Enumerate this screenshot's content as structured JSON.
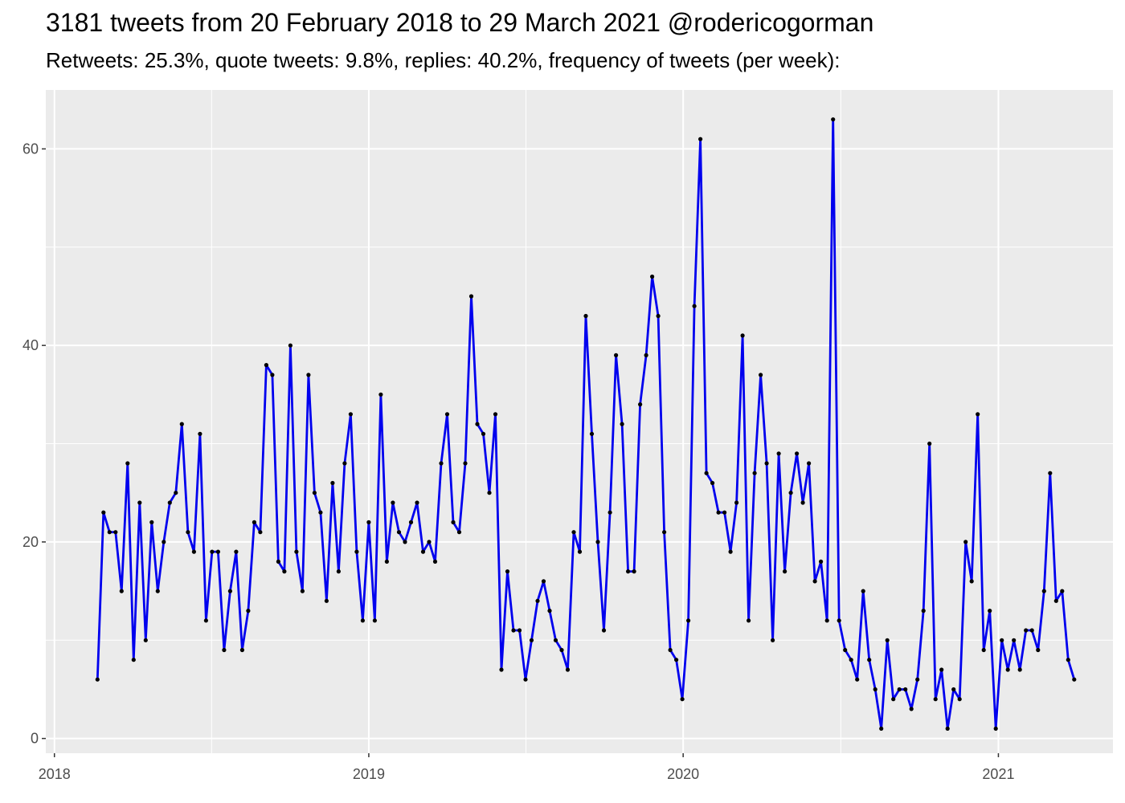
{
  "chart_data": {
    "type": "line",
    "title": "3181 tweets from 20 February 2018 to 29 March 2021 @rodericogorman",
    "subtitle": "Retweets: 25.3%, quote tweets: 9.8%, replies: 40.2%, frequency of tweets (per week):",
    "xlabel": "",
    "ylabel": "",
    "xlim": [
      "2017-12-22",
      "2021-05-14"
    ],
    "ylim": [
      -1.5,
      66
    ],
    "x_ticks": [
      "2018-01-01",
      "2019-01-01",
      "2020-01-01",
      "2021-01-01"
    ],
    "x_tick_labels": [
      "2018",
      "2019",
      "2020",
      "2021"
    ],
    "y_ticks": [
      0,
      20,
      40,
      60
    ],
    "y_tick_labels": [
      "0",
      "20",
      "40",
      "60"
    ],
    "grid": true,
    "legend": "none",
    "colors": {
      "line": "#0000ee",
      "point": "#000000",
      "panel": "#ebebeb",
      "grid": "#ffffff",
      "tick_text": "#4d4d4d"
    },
    "series": [
      {
        "x": [
          "2018-02-20",
          "2018-02-27",
          "2018-03-06",
          "2018-03-13",
          "2018-03-20",
          "2018-03-27",
          "2018-04-03",
          "2018-04-10",
          "2018-04-17",
          "2018-04-24",
          "2018-05-01",
          "2018-05-08",
          "2018-05-15",
          "2018-05-22",
          "2018-05-29",
          "2018-06-05",
          "2018-06-12",
          "2018-06-19",
          "2018-06-26",
          "2018-07-03",
          "2018-07-10",
          "2018-07-17",
          "2018-07-24",
          "2018-07-31",
          "2018-08-07",
          "2018-08-14",
          "2018-08-21",
          "2018-08-28",
          "2018-09-04",
          "2018-09-11",
          "2018-09-18",
          "2018-09-25",
          "2018-10-02",
          "2018-10-09",
          "2018-10-16",
          "2018-10-23",
          "2018-10-30",
          "2018-11-06",
          "2018-11-13",
          "2018-11-20",
          "2018-11-27",
          "2018-12-04",
          "2018-12-11",
          "2018-12-18",
          "2018-12-25",
          "2019-01-01",
          "2019-01-08",
          "2019-01-15",
          "2019-01-22",
          "2019-01-29",
          "2019-02-05",
          "2019-02-12",
          "2019-02-19",
          "2019-02-26",
          "2019-03-05",
          "2019-03-12",
          "2019-03-19",
          "2019-03-26",
          "2019-04-02",
          "2019-04-09",
          "2019-04-16",
          "2019-04-23",
          "2019-04-30",
          "2019-05-07",
          "2019-05-14",
          "2019-05-21",
          "2019-05-28",
          "2019-06-04",
          "2019-06-11",
          "2019-06-18",
          "2019-06-25",
          "2019-07-02",
          "2019-07-09",
          "2019-07-16",
          "2019-07-23",
          "2019-07-30",
          "2019-08-06",
          "2019-08-13",
          "2019-08-20",
          "2019-08-27",
          "2019-09-03",
          "2019-09-10",
          "2019-09-17",
          "2019-09-24",
          "2019-10-01",
          "2019-10-08",
          "2019-10-15",
          "2019-10-22",
          "2019-10-29",
          "2019-11-05",
          "2019-11-12",
          "2019-11-19",
          "2019-11-26",
          "2019-12-03",
          "2019-12-10",
          "2019-12-17",
          "2019-12-24",
          "2019-12-31",
          "2020-01-07",
          "2020-01-14",
          "2020-01-21",
          "2020-01-28",
          "2020-02-04",
          "2020-02-11",
          "2020-02-18",
          "2020-02-25",
          "2020-03-03",
          "2020-03-10",
          "2020-03-17",
          "2020-03-24",
          "2020-03-31",
          "2020-04-07",
          "2020-04-14",
          "2020-04-21",
          "2020-04-28",
          "2020-05-05",
          "2020-05-12",
          "2020-05-19",
          "2020-05-26",
          "2020-06-02",
          "2020-06-09",
          "2020-06-16",
          "2020-06-23",
          "2020-06-30",
          "2020-07-07",
          "2020-07-14",
          "2020-07-21",
          "2020-07-28",
          "2020-08-04",
          "2020-08-11",
          "2020-08-18",
          "2020-08-25",
          "2020-09-01",
          "2020-09-08",
          "2020-09-15",
          "2020-09-22",
          "2020-09-29",
          "2020-10-06",
          "2020-10-13",
          "2020-10-20",
          "2020-10-27",
          "2020-11-03",
          "2020-11-10",
          "2020-11-17",
          "2020-11-24",
          "2020-12-01",
          "2020-12-08",
          "2020-12-15",
          "2020-12-22",
          "2020-12-29",
          "2021-01-05",
          "2021-01-12",
          "2021-01-19",
          "2021-01-26",
          "2021-02-02",
          "2021-02-09",
          "2021-02-16",
          "2021-02-23",
          "2021-03-02",
          "2021-03-09",
          "2021-03-16",
          "2021-03-23",
          "2021-03-30"
        ],
        "y": [
          6,
          23,
          21,
          21,
          15,
          28,
          8,
          24,
          10,
          22,
          15,
          20,
          24,
          25,
          32,
          21,
          19,
          31,
          12,
          19,
          19,
          9,
          15,
          19,
          9,
          13,
          22,
          21,
          38,
          37,
          18,
          17,
          40,
          19,
          15,
          37,
          25,
          23,
          14,
          26,
          17,
          28,
          33,
          19,
          12,
          22,
          12,
          35,
          18,
          24,
          21,
          20,
          22,
          24,
          19,
          20,
          18,
          28,
          33,
          22,
          21,
          28,
          45,
          32,
          31,
          25,
          33,
          7,
          17,
          11,
          11,
          6,
          10,
          14,
          16,
          13,
          10,
          9,
          7,
          21,
          19,
          43,
          31,
          20,
          11,
          23,
          39,
          32,
          17,
          17,
          34,
          39,
          47,
          43,
          21,
          9,
          8,
          4,
          12,
          44,
          61,
          27,
          26,
          23,
          23,
          19,
          24,
          41,
          12,
          27,
          37,
          28,
          10,
          29,
          17,
          25,
          29,
          24,
          28,
          16,
          18,
          12,
          63,
          12,
          9,
          8,
          6,
          15,
          8,
          5,
          1,
          10,
          4,
          5,
          5,
          3,
          6,
          13,
          30,
          4,
          7,
          1,
          5,
          4,
          20,
          16,
          33,
          9,
          13,
          1,
          10,
          7,
          10,
          7,
          11,
          11,
          9,
          15,
          27,
          14,
          15,
          8,
          6
        ]
      }
    ]
  }
}
